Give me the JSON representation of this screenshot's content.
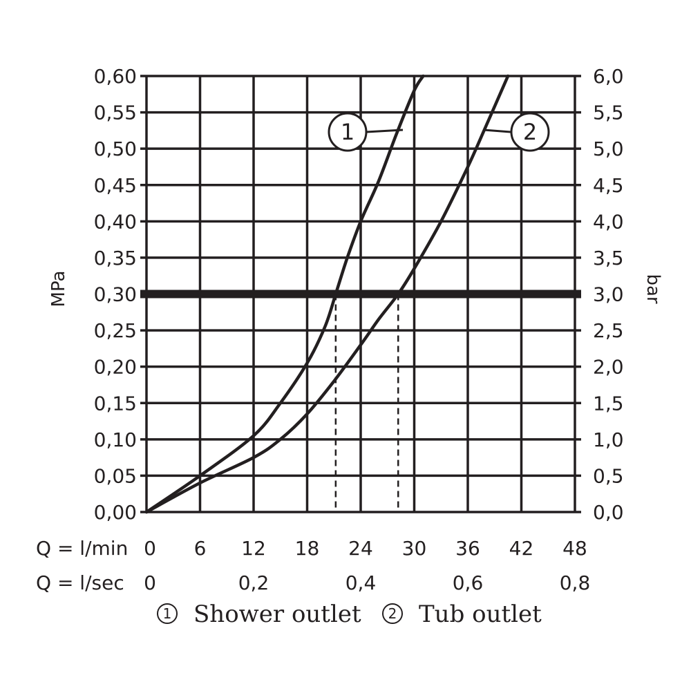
{
  "chart_data": {
    "type": "line",
    "x_unit_label": "Q = l/min",
    "x_secondary_unit_label": "Q = l/sec",
    "y_left_label": "MPa",
    "y_right_label": "bar",
    "xlim": [
      0,
      48
    ],
    "ylim": [
      0,
      0.6
    ],
    "grid": true,
    "x_ticks": [
      0,
      6,
      12,
      18,
      24,
      30,
      36,
      42,
      48
    ],
    "x_tick_labels": [
      "0",
      "6",
      "12",
      "18",
      "24",
      "30",
      "36",
      "42",
      "48"
    ],
    "x_secondary_ticks": [
      0,
      12,
      24,
      36,
      48
    ],
    "x_secondary_tick_labels": [
      "0",
      "0,2",
      "0,4",
      "0,6",
      "0,8"
    ],
    "y_ticks": [
      0,
      0.05,
      0.1,
      0.15,
      0.2,
      0.25,
      0.3,
      0.35,
      0.4,
      0.45,
      0.5,
      0.55,
      0.6
    ],
    "y_left_tick_labels": [
      "0,00",
      "0,05",
      "0,10",
      "0,15",
      "0,20",
      "0,25",
      "0,30",
      "0,35",
      "0,40",
      "0,45",
      "0,50",
      "0,55",
      "0,60"
    ],
    "y_right_tick_labels": [
      "0,0",
      "0,5",
      "1,0",
      "1,5",
      "2,0",
      "2,5",
      "3,0",
      "3,5",
      "4,0",
      "4,5",
      "5,0",
      "5,5",
      "6,0"
    ],
    "reference_line": {
      "y": 0.3
    },
    "drop_lines": [
      {
        "x": 21.2,
        "y": 0.3
      },
      {
        "x": 28.2,
        "y": 0.3
      }
    ],
    "series": [
      {
        "name": "Shower outlet",
        "marker": "1",
        "x": [
          0,
          6,
          12,
          15,
          18,
          20,
          21.2,
          22.5,
          24,
          26,
          28,
          30,
          31
        ],
        "y": [
          0,
          0.05,
          0.105,
          0.15,
          0.205,
          0.255,
          0.3,
          0.35,
          0.4,
          0.455,
          0.52,
          0.58,
          0.6
        ]
      },
      {
        "name": "Tub outlet",
        "marker": "2",
        "x": [
          0,
          6,
          12,
          15,
          18,
          21,
          24,
          26,
          28.2,
          30,
          33,
          36,
          38,
          40.5
        ],
        "y": [
          0,
          0.04,
          0.075,
          0.1,
          0.135,
          0.18,
          0.23,
          0.265,
          0.3,
          0.335,
          0.4,
          0.475,
          0.53,
          0.6
        ]
      }
    ],
    "legend": {
      "position": "bottom",
      "items": [
        {
          "marker": "1",
          "label": "Shower outlet"
        },
        {
          "marker": "2",
          "label": "Tub outlet"
        }
      ]
    },
    "colors": {
      "ink": "#231f20",
      "background": "#ffffff"
    }
  }
}
